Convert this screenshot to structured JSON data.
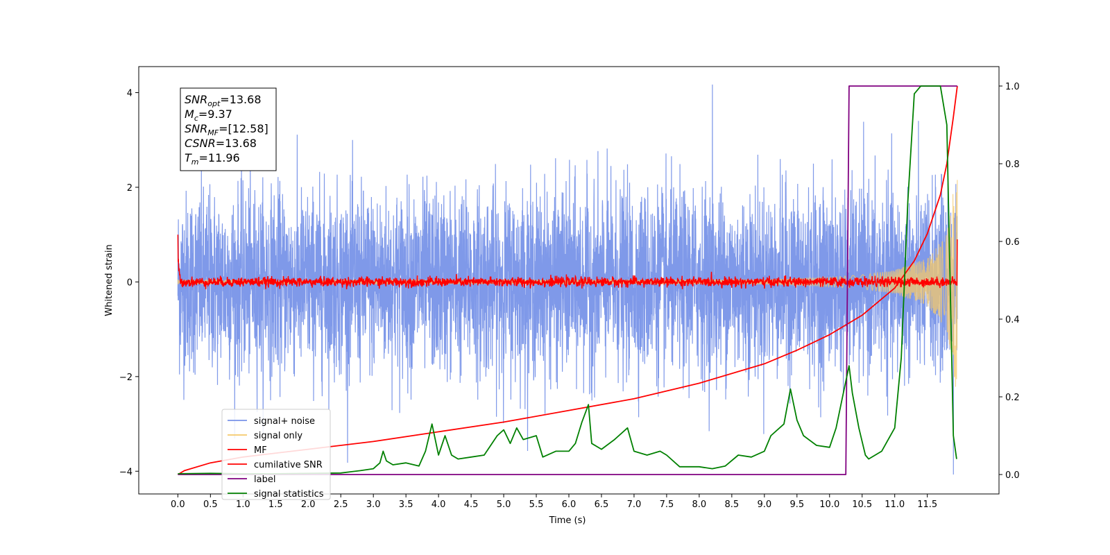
{
  "chart_data": {
    "type": "line",
    "title": "",
    "xlabel": "Time (s)",
    "ylabel": "Whitened strain",
    "y2label": "",
    "xlim": [
      -0.6,
      12.6
    ],
    "ylim": [
      -4.48,
      4.55
    ],
    "y2lim": [
      -0.05,
      1.05
    ],
    "x_ticks": [
      "0.0",
      "0.5",
      "1.0",
      "1.5",
      "2.0",
      "2.5",
      "3.0",
      "3.5",
      "4.0",
      "4.5",
      "5.0",
      "5.5",
      "6.0",
      "6.5",
      "7.0",
      "7.5",
      "8.0",
      "8.5",
      "9.0",
      "9.5",
      "10.0",
      "10.5",
      "11.0",
      "11.5"
    ],
    "y_ticks": [
      "4",
      "2",
      "0",
      "−2",
      "−4"
    ],
    "y2_ticks": [
      "1.0",
      "0.8",
      "0.6",
      "0.4",
      "0.2",
      "0.0"
    ],
    "grid": false,
    "legend_position": "lower-left",
    "annotation": {
      "lines": [
        {
          "base": "SNR",
          "sub": "opt",
          "rest": "=13.68"
        },
        {
          "base": "M",
          "sub": "c",
          "rest": "=9.37"
        },
        {
          "base": "SNR",
          "sub": "MF",
          "rest": "=[12.58]"
        },
        {
          "base": "CSNR",
          "sub": "",
          "rest": "=13.68"
        },
        {
          "base": "T",
          "sub": "m",
          "rest": "=11.96"
        }
      ]
    },
    "series": [
      {
        "name": "signal+ noise",
        "color": "#7893e8",
        "axis": "left",
        "kind": "noise",
        "t_end": 11.96,
        "amplitude_sd": 0.95,
        "spike_max": 4.17,
        "spike_min": -4.07
      },
      {
        "name": "signal only",
        "color": "#f5c96a",
        "axis": "left",
        "kind": "chirp",
        "t_start": 0.0,
        "t_end": 11.96,
        "envelope": [
          [
            9.0,
            0.05
          ],
          [
            10.0,
            0.1
          ],
          [
            10.5,
            0.15
          ],
          [
            11.0,
            0.25
          ],
          [
            11.5,
            0.5
          ],
          [
            11.8,
            1.0
          ],
          [
            11.93,
            2.25
          ]
        ]
      },
      {
        "name": "MF",
        "color": "#ff0000",
        "axis": "left",
        "kind": "mf",
        "t_end": 11.96,
        "start_value": 1.0,
        "noise_sd": 0.05
      },
      {
        "name": "cumilative SNR",
        "color": "#ff0000",
        "axis": "right",
        "kind": "curve",
        "points": [
          [
            0.0,
            0.0
          ],
          [
            0.1,
            0.01
          ],
          [
            0.5,
            0.03
          ],
          [
            1.0,
            0.045
          ],
          [
            2.0,
            0.065
          ],
          [
            3.0,
            0.085
          ],
          [
            4.0,
            0.11
          ],
          [
            5.0,
            0.135
          ],
          [
            6.0,
            0.165
          ],
          [
            7.0,
            0.195
          ],
          [
            8.0,
            0.235
          ],
          [
            9.0,
            0.285
          ],
          [
            9.5,
            0.32
          ],
          [
            10.0,
            0.36
          ],
          [
            10.5,
            0.41
          ],
          [
            11.0,
            0.48
          ],
          [
            11.3,
            0.55
          ],
          [
            11.5,
            0.62
          ],
          [
            11.7,
            0.72
          ],
          [
            11.8,
            0.8
          ],
          [
            11.9,
            0.92
          ],
          [
            11.96,
            1.0
          ]
        ]
      },
      {
        "name": "label",
        "color": "#800080",
        "axis": "right",
        "kind": "step",
        "points": [
          [
            0.0,
            0.0
          ],
          [
            10.25,
            0.0
          ],
          [
            10.3,
            1.0
          ],
          [
            11.96,
            1.0
          ]
        ]
      },
      {
        "name": "signal statistics",
        "color": "#008000",
        "axis": "right",
        "kind": "curve",
        "points": [
          [
            0.0,
            0.002
          ],
          [
            0.5,
            0.003
          ],
          [
            1.0,
            0.002
          ],
          [
            1.5,
            0.002
          ],
          [
            2.0,
            0.003
          ],
          [
            2.5,
            0.004
          ],
          [
            2.8,
            0.01
          ],
          [
            3.0,
            0.015
          ],
          [
            3.1,
            0.03
          ],
          [
            3.15,
            0.06
          ],
          [
            3.2,
            0.035
          ],
          [
            3.3,
            0.025
          ],
          [
            3.5,
            0.03
          ],
          [
            3.7,
            0.022
          ],
          [
            3.8,
            0.06
          ],
          [
            3.9,
            0.13
          ],
          [
            4.0,
            0.05
          ],
          [
            4.1,
            0.1
          ],
          [
            4.2,
            0.05
          ],
          [
            4.3,
            0.04
          ],
          [
            4.5,
            0.045
          ],
          [
            4.7,
            0.05
          ],
          [
            4.9,
            0.1
          ],
          [
            5.0,
            0.115
          ],
          [
            5.1,
            0.08
          ],
          [
            5.2,
            0.12
          ],
          [
            5.3,
            0.09
          ],
          [
            5.5,
            0.1
          ],
          [
            5.6,
            0.045
          ],
          [
            5.8,
            0.06
          ],
          [
            6.0,
            0.06
          ],
          [
            6.1,
            0.08
          ],
          [
            6.2,
            0.135
          ],
          [
            6.3,
            0.18
          ],
          [
            6.35,
            0.08
          ],
          [
            6.5,
            0.065
          ],
          [
            6.7,
            0.09
          ],
          [
            6.9,
            0.12
          ],
          [
            7.0,
            0.06
          ],
          [
            7.2,
            0.05
          ],
          [
            7.4,
            0.06
          ],
          [
            7.5,
            0.05
          ],
          [
            7.7,
            0.02
          ],
          [
            8.0,
            0.02
          ],
          [
            8.2,
            0.015
          ],
          [
            8.4,
            0.022
          ],
          [
            8.6,
            0.05
          ],
          [
            8.8,
            0.045
          ],
          [
            9.0,
            0.06
          ],
          [
            9.1,
            0.1
          ],
          [
            9.3,
            0.13
          ],
          [
            9.4,
            0.22
          ],
          [
            9.5,
            0.14
          ],
          [
            9.6,
            0.1
          ],
          [
            9.8,
            0.075
          ],
          [
            10.0,
            0.07
          ],
          [
            10.1,
            0.12
          ],
          [
            10.2,
            0.2
          ],
          [
            10.3,
            0.28
          ],
          [
            10.35,
            0.21
          ],
          [
            10.45,
            0.12
          ],
          [
            10.55,
            0.05
          ],
          [
            10.6,
            0.04
          ],
          [
            10.8,
            0.06
          ],
          [
            11.0,
            0.12
          ],
          [
            11.1,
            0.3
          ],
          [
            11.2,
            0.7
          ],
          [
            11.3,
            0.98
          ],
          [
            11.4,
            1.0
          ],
          [
            11.7,
            1.0
          ],
          [
            11.8,
            0.9
          ],
          [
            11.85,
            0.5
          ],
          [
            11.9,
            0.1
          ],
          [
            11.95,
            0.04
          ]
        ]
      }
    ]
  }
}
